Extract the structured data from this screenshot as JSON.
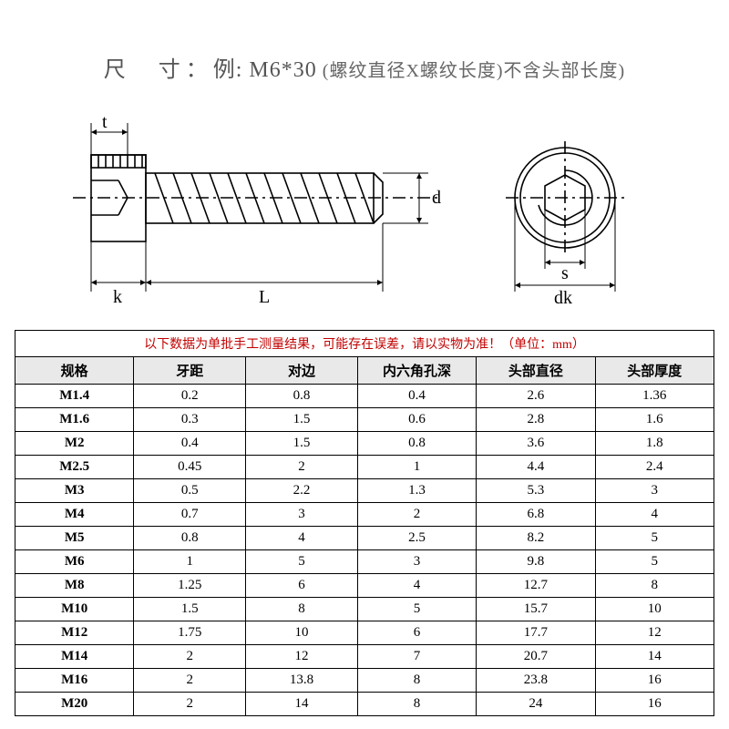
{
  "title": {
    "main": "尺　寸：",
    "example": "例: M6*30",
    "sub": " (螺纹直径X螺纹长度)不含头部长度)"
  },
  "diagram": {
    "labels": {
      "t": "t",
      "k": "k",
      "L": "L",
      "d": "d",
      "s": "s",
      "dk": "dk"
    },
    "stroke": "#000000",
    "stroke_width": 1.6
  },
  "table": {
    "note": "以下数据为单批手工测量结果，可能存在误差，请以实物为准！（单位：mm）",
    "columns": [
      "规格",
      "牙距",
      "对边",
      "内六角孔深",
      "头部直径",
      "头部厚度"
    ],
    "rows": [
      [
        "M1.4",
        "0.2",
        "0.8",
        "0.4",
        "2.6",
        "1.36"
      ],
      [
        "M1.6",
        "0.3",
        "1.5",
        "0.6",
        "2.8",
        "1.6"
      ],
      [
        "M2",
        "0.4",
        "1.5",
        "0.8",
        "3.6",
        "1.8"
      ],
      [
        "M2.5",
        "0.45",
        "2",
        "1",
        "4.4",
        "2.4"
      ],
      [
        "M3",
        "0.5",
        "2.2",
        "1.3",
        "5.3",
        "3"
      ],
      [
        "M4",
        "0.7",
        "3",
        "2",
        "6.8",
        "4"
      ],
      [
        "M5",
        "0.8",
        "4",
        "2.5",
        "8.2",
        "5"
      ],
      [
        "M6",
        "1",
        "5",
        "3",
        "9.8",
        "5"
      ],
      [
        "M8",
        "1.25",
        "6",
        "4",
        "12.7",
        "8"
      ],
      [
        "M10",
        "1.5",
        "8",
        "5",
        "15.7",
        "10"
      ],
      [
        "M12",
        "1.75",
        "10",
        "6",
        "17.7",
        "12"
      ],
      [
        "M14",
        "2",
        "12",
        "7",
        "20.7",
        "14"
      ],
      [
        "M16",
        "2",
        "13.8",
        "8",
        "23.8",
        "16"
      ],
      [
        "M20",
        "2",
        "14",
        "8",
        "24",
        "16"
      ]
    ],
    "header_bg": "#e9e9e9",
    "note_color": "#c00000",
    "border_color": "#000000"
  }
}
